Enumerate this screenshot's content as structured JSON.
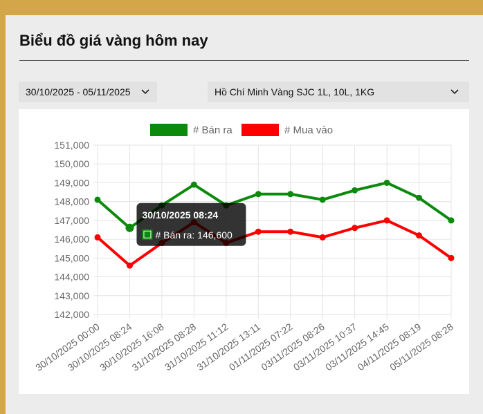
{
  "page": {
    "title": "Biểu đồ giá vàng hôm nay"
  },
  "filters": {
    "date_range": "30/10/2025 - 05/11/2025",
    "location_product": "Hồ Chí Minh Vàng SJC 1L, 10L, 1KG"
  },
  "colors": {
    "sell": "#0b8a0b",
    "buy": "#ff0000",
    "background": "#d4a64a"
  },
  "chart_data": {
    "type": "line",
    "categories": [
      "30/10/2025 00:00",
      "30/10/2025 08:24",
      "30/10/2025 16:08",
      "31/10/2025 08:28",
      "31/10/2025 11:12",
      "31/10/2025 13:11",
      "01/11/2025 07:22",
      "03/11/2025 08:26",
      "03/11/2025 10:37",
      "03/11/2025 14:45",
      "04/11/2025 08:19",
      "05/11/2025 08:28"
    ],
    "series": [
      {
        "name": "# Bán ra",
        "color": "#0b8a0b",
        "values": [
          148100,
          146600,
          147800,
          148900,
          147800,
          148400,
          148400,
          148100,
          148600,
          149000,
          148200,
          147000
        ]
      },
      {
        "name": "# Mua vào",
        "color": "#ff0000",
        "values": [
          146100,
          144600,
          145800,
          146900,
          145800,
          146400,
          146400,
          146100,
          146600,
          147000,
          146200,
          145000
        ]
      }
    ],
    "ylim": [
      142000,
      151000
    ],
    "yticks": [
      "151,000",
      "150,000",
      "149,000",
      "148,000",
      "147,000",
      "146,000",
      "145,000",
      "144,000",
      "143,000",
      "142,000"
    ],
    "legend_position": "top",
    "grid": true,
    "tooltip": {
      "title": "30/10/2025 08:24",
      "label": "# Bán ra: 146,600",
      "series_index": 0,
      "point_index": 1
    }
  }
}
